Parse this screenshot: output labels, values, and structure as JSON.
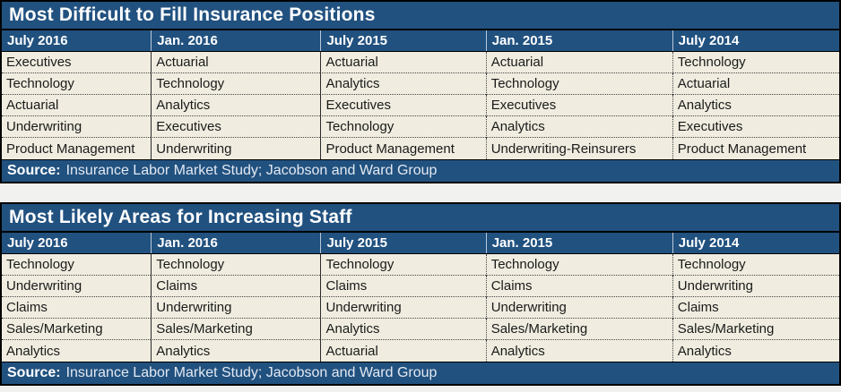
{
  "page": {
    "background": "#F1F1EF"
  },
  "colors": {
    "band_blue": "#21517F",
    "body_cream": "#F0EDE0",
    "body_text": "#1A1A1A",
    "band_text": "#FFFFFF",
    "source_text": "#E3E9F2",
    "border": "#000000"
  },
  "chart_data": [
    {
      "type": "table",
      "title": "Most Difficult to Fill Insurance Positions",
      "columns": [
        "July 2016",
        "Jan. 2016",
        "July 2015",
        "Jan. 2015",
        "July 2014"
      ],
      "rows": [
        [
          "Executives",
          "Actuarial",
          "Actuarial",
          "Actuarial",
          "Technology"
        ],
        [
          "Technology",
          "Technology",
          "Analytics",
          "Technology",
          "Actuarial"
        ],
        [
          "Actuarial",
          "Analytics",
          "Executives",
          "Executives",
          "Analytics"
        ],
        [
          "Underwriting",
          "Executives",
          "Technology",
          "Analytics",
          "Executives"
        ],
        [
          "Product Management",
          "Underwriting",
          "Product Management",
          "Underwriting-Reinsurers",
          "Product Management"
        ]
      ],
      "source_label": "Source:",
      "source_text": "Insurance Labor Market Study; Jacobson and Ward Group"
    },
    {
      "type": "table",
      "title": "Most Likely Areas for Increasing Staff",
      "columns": [
        "July 2016",
        "Jan. 2016",
        "July 2015",
        "Jan. 2015",
        "July 2014"
      ],
      "rows": [
        [
          "Technology",
          "Technology",
          "Technology",
          "Technology",
          "Technology"
        ],
        [
          "Underwriting",
          "Claims",
          "Claims",
          "Claims",
          "Underwriting"
        ],
        [
          "Claims",
          "Underwriting",
          "Underwriting",
          "Underwriting",
          "Claims"
        ],
        [
          "Sales/Marketing",
          "Sales/Marketing",
          "Analytics",
          "Sales/Marketing",
          "Sales/Marketing"
        ],
        [
          "Analytics",
          "Analytics",
          "Actuarial",
          "Analytics",
          "Analytics"
        ]
      ],
      "source_label": "Source:",
      "source_text": "Insurance Labor Market Study; Jacobson and Ward Group"
    }
  ]
}
